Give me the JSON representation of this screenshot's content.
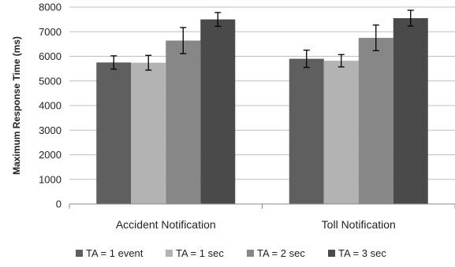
{
  "chart_data": {
    "type": "bar",
    "title": "",
    "xlabel": "",
    "ylabel": "Maximum Response Time (ms)",
    "ylim": [
      0,
      8000
    ],
    "yticks": [
      0,
      1000,
      2000,
      3000,
      4000,
      5000,
      6000,
      7000,
      8000
    ],
    "grid": "horizontal",
    "legend_position": "bottom",
    "categories": [
      "Accident Notification",
      "Toll Notification"
    ],
    "series": [
      {
        "name": "TA = 1 event",
        "color": "#5f5f5f",
        "values": [
          5750,
          5900
        ],
        "errors": [
          270,
          350
        ]
      },
      {
        "name": "TA = 1 sec",
        "color": "#b3b3b3",
        "values": [
          5740,
          5820
        ],
        "errors": [
          300,
          250
        ]
      },
      {
        "name": "TA = 2 sec",
        "color": "#878787",
        "values": [
          6640,
          6750
        ],
        "errors": [
          530,
          520
        ]
      },
      {
        "name": "TA = 3 sec",
        "color": "#4a4a4a",
        "values": [
          7500,
          7550
        ],
        "errors": [
          280,
          320
        ]
      }
    ]
  }
}
